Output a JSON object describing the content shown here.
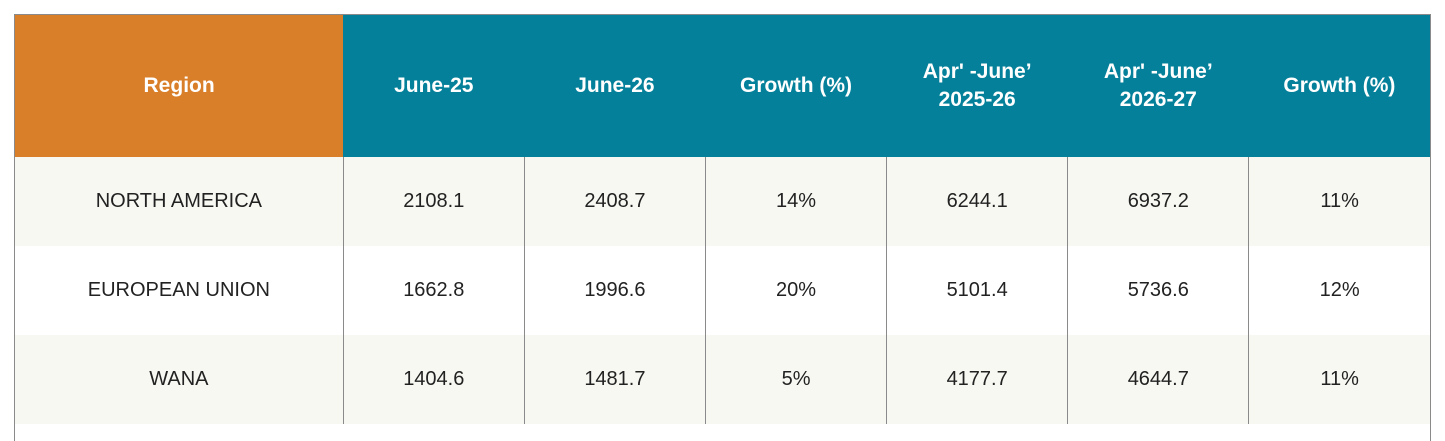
{
  "table": {
    "headers": [
      "Region",
      "June-25",
      "June-26",
      "Growth (%)",
      "Apr' -June’\n2025-26",
      "Apr' -June’\n2026-27",
      "Growth (%)"
    ],
    "rows": [
      [
        "NORTH AMERICA",
        "2108.1",
        "2408.7",
        "14%",
        "6244.1",
        "6937.2",
        "11%"
      ],
      [
        "EUROPEAN UNION",
        "1662.8",
        "1996.6",
        "20%",
        "5101.4",
        "5736.6",
        "12%"
      ],
      [
        "WANA",
        "1404.6",
        "1481.7",
        "5%",
        "4177.7",
        "4644.7",
        "11%"
      ]
    ]
  },
  "colors": {
    "header_region_bg": "#d97f2a",
    "header_bg": "#05809a",
    "row_alt_bg": "#f8f8f3",
    "border": "#8a8a8a"
  }
}
